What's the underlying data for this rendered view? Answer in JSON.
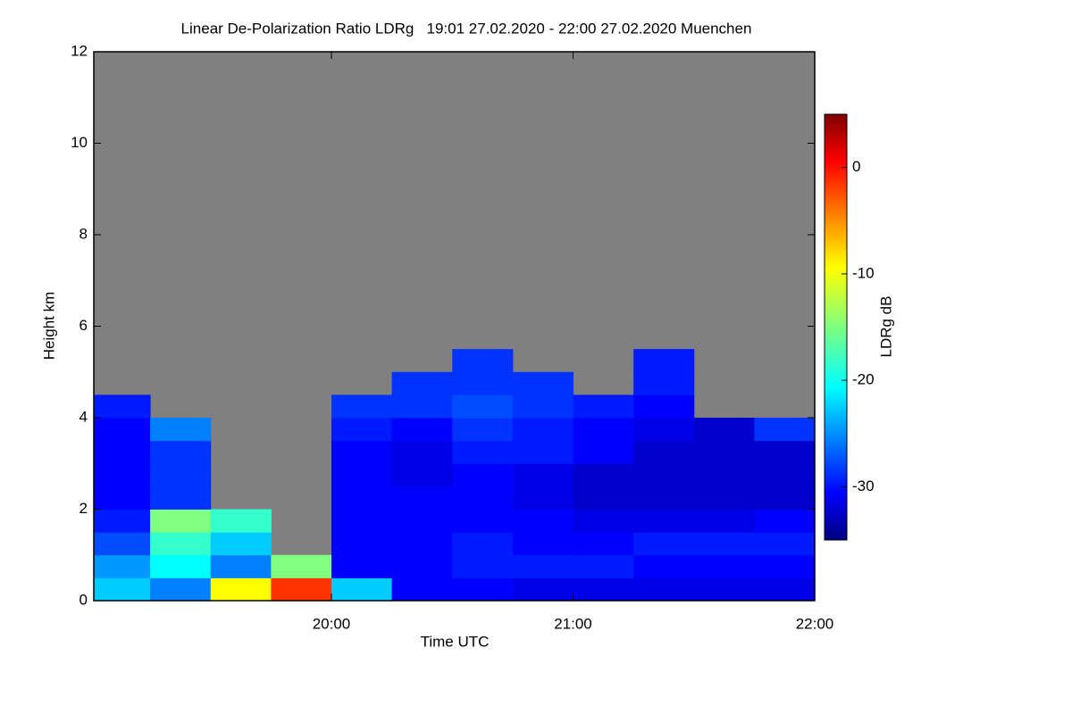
{
  "chart_data": {
    "type": "heatmap",
    "title": "Linear De-Polarization Ratio LDRg   19:01 27.02.2020 - 22:00 27.02.2020 Muenchen",
    "x_label": "Time UTC",
    "y_label": "Height km",
    "colorbar_label": "LDRg dB",
    "colormap": "jet",
    "background": "#808080",
    "xlim": [
      19.0167,
      22.0
    ],
    "xticks": [
      {
        "value": 20,
        "label": "20:00"
      },
      {
        "value": 21,
        "label": "21:00"
      },
      {
        "value": 22,
        "label": "22:00"
      }
    ],
    "ylim": [
      0,
      12
    ],
    "yticks": [
      0,
      2,
      4,
      6,
      8,
      10,
      12
    ],
    "zlim": [
      -35,
      5
    ],
    "zticks": [
      0,
      -10,
      -20,
      -30
    ],
    "x_bins": [
      19.0,
      19.25,
      19.5,
      19.75,
      20.0,
      20.25,
      20.5,
      20.75,
      21.0,
      21.25,
      21.5,
      21.75,
      22.0
    ],
    "y_bins": [
      0,
      0.5,
      1,
      1.5,
      2,
      2.5,
      3,
      3.5,
      4,
      4.5,
      5,
      5.5,
      6
    ],
    "z": [
      [
        -22,
        -25,
        -10,
        -2,
        -22,
        -30,
        -30,
        -31,
        -31,
        -31,
        -31,
        -31
      ],
      [
        -24,
        -20,
        -25,
        -15,
        -30,
        -30,
        -29,
        -29,
        -29,
        -30,
        -30,
        -30
      ],
      [
        -27,
        -18,
        -22,
        null,
        -30,
        -30,
        -29,
        -30,
        -30,
        -29,
        -29,
        -29
      ],
      [
        -29,
        -15,
        -18,
        null,
        -30,
        -30,
        -30,
        -30,
        -31,
        -31,
        -31,
        -30
      ],
      [
        -30,
        -28,
        null,
        null,
        -30,
        -30,
        -30,
        -31,
        -32,
        -32,
        -32,
        -32
      ],
      [
        -30,
        -28,
        null,
        null,
        -30,
        -31,
        -30,
        -31,
        -32,
        -32,
        -32,
        -32
      ],
      [
        -30,
        -28,
        null,
        null,
        -30,
        -31,
        -29,
        -29,
        -30,
        -32,
        -32,
        -32
      ],
      [
        -30,
        -25,
        null,
        null,
        -29,
        -30,
        -28,
        -29,
        -30,
        -31,
        -32,
        -28
      ],
      [
        -29,
        null,
        null,
        null,
        -28,
        -28,
        -27,
        -28,
        -29,
        -30,
        null,
        null
      ],
      [
        null,
        null,
        null,
        null,
        null,
        -28,
        -28,
        -28,
        null,
        -29,
        null,
        null
      ],
      [
        null,
        null,
        null,
        null,
        null,
        null,
        -28,
        null,
        null,
        -29,
        null,
        null
      ],
      [
        null,
        null,
        null,
        null,
        null,
        null,
        null,
        null,
        null,
        null,
        null,
        null
      ]
    ]
  }
}
